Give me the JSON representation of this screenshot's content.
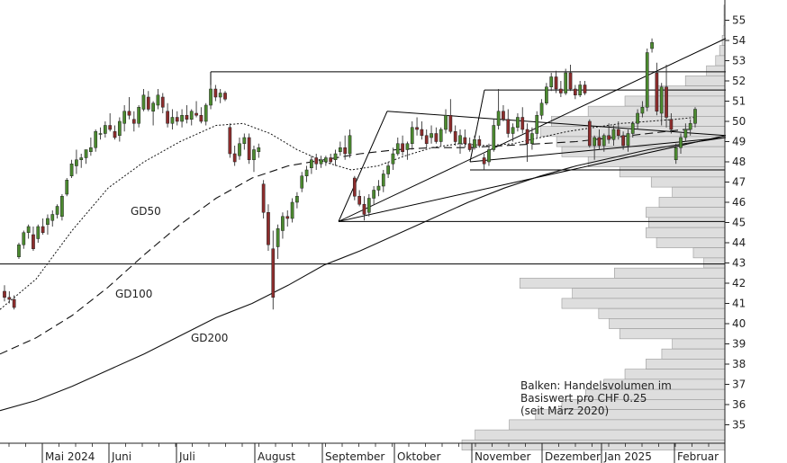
{
  "chart_data": {
    "type": "candlestick",
    "title": "",
    "xlabel": "",
    "ylabel": "",
    "ylim": [
      33.3,
      56
    ],
    "y_ticks": [
      35,
      36,
      37,
      38,
      39,
      40,
      41,
      42,
      43,
      44,
      45,
      46,
      47,
      48,
      49,
      50,
      51,
      52,
      53,
      54,
      55
    ],
    "x_months": [
      "Mai 2024",
      "Juni",
      "Juli",
      "August",
      "September",
      "Oktober",
      "November",
      "Dezember",
      "Jan 2025",
      "Februar"
    ],
    "candles": [
      [
        41.6,
        41.9,
        41.1,
        41.3
      ],
      [
        41.3,
        41.6,
        41.0,
        41.2
      ],
      [
        41.2,
        41.4,
        40.7,
        40.8
      ],
      [
        43.3,
        44.0,
        43.2,
        43.9
      ],
      [
        43.9,
        44.6,
        43.7,
        44.5
      ],
      [
        44.5,
        44.9,
        44.2,
        44.8
      ],
      [
        44.4,
        44.8,
        43.6,
        43.7
      ],
      [
        44.2,
        44.9,
        44.0,
        44.8
      ],
      [
        44.8,
        45.2,
        44.4,
        44.5
      ],
      [
        44.9,
        45.4,
        44.4,
        45.2
      ],
      [
        45.1,
        45.6,
        44.8,
        45.4
      ],
      [
        45.4,
        45.9,
        45.2,
        45.8
      ],
      [
        45.3,
        46.4,
        45.1,
        46.3
      ],
      [
        46.4,
        47.2,
        46.3,
        47.1
      ],
      [
        47.3,
        48.1,
        47.2,
        47.9
      ],
      [
        47.8,
        48.6,
        47.4,
        48.1
      ],
      [
        48.1,
        48.4,
        47.7,
        48.2
      ],
      [
        48.2,
        48.6,
        47.9,
        48.6
      ],
      [
        48.5,
        49.2,
        48.3,
        48.7
      ],
      [
        48.7,
        49.6,
        48.5,
        49.5
      ],
      [
        49.4,
        49.7,
        49.1,
        49.4
      ],
      [
        49.4,
        50.0,
        49.2,
        49.8
      ],
      [
        49.8,
        50.4,
        49.5,
        49.6
      ],
      [
        49.5,
        49.8,
        49.1,
        49.2
      ],
      [
        49.3,
        50.2,
        49.0,
        50.0
      ],
      [
        49.9,
        50.8,
        49.5,
        50.5
      ],
      [
        50.5,
        51.2,
        50.1,
        50.3
      ],
      [
        50.1,
        50.5,
        49.5,
        49.9
      ],
      [
        49.9,
        50.8,
        49.7,
        50.7
      ],
      [
        50.6,
        51.6,
        50.5,
        51.3
      ],
      [
        51.2,
        51.5,
        50.5,
        50.6
      ],
      [
        50.5,
        51.0,
        49.8,
        50.9
      ],
      [
        50.8,
        51.6,
        50.6,
        51.3
      ],
      [
        51.2,
        51.4,
        50.4,
        50.7
      ],
      [
        50.5,
        50.9,
        49.7,
        49.9
      ],
      [
        49.9,
        50.6,
        49.6,
        50.2
      ],
      [
        50.2,
        50.5,
        49.8,
        50.0
      ],
      [
        50.0,
        50.6,
        49.7,
        50.3
      ],
      [
        50.3,
        50.8,
        49.9,
        50.1
      ],
      [
        50.1,
        50.6,
        49.8,
        50.5
      ],
      [
        50.4,
        51.0,
        50.2,
        50.3
      ],
      [
        50.3,
        50.7,
        49.9,
        50.0
      ],
      [
        50.0,
        50.9,
        49.8,
        50.8
      ],
      [
        50.8,
        51.8,
        50.6,
        51.6
      ],
      [
        51.6,
        51.8,
        51.0,
        51.2
      ],
      [
        51.2,
        51.6,
        50.9,
        51.4
      ],
      [
        51.4,
        51.5,
        51.0,
        51.1
      ],
      [
        49.7,
        49.9,
        48.2,
        48.4
      ],
      [
        48.4,
        48.8,
        47.8,
        48.0
      ],
      [
        48.3,
        49.2,
        48.1,
        48.9
      ],
      [
        48.9,
        49.4,
        48.6,
        49.2
      ],
      [
        49.2,
        49.4,
        47.9,
        48.1
      ],
      [
        48.1,
        48.8,
        47.5,
        48.6
      ],
      [
        48.5,
        48.9,
        48.2,
        48.7
      ],
      [
        46.9,
        47.1,
        45.2,
        45.5
      ],
      [
        45.5,
        45.9,
        43.6,
        43.9
      ],
      [
        43.7,
        44.6,
        40.7,
        41.3
      ],
      [
        43.8,
        44.9,
        43.2,
        44.7
      ],
      [
        44.6,
        45.5,
        44.2,
        45.3
      ],
      [
        45.3,
        45.6,
        44.8,
        45.2
      ],
      [
        45.2,
        46.2,
        45.0,
        46.0
      ],
      [
        46.0,
        46.5,
        45.7,
        46.3
      ],
      [
        46.7,
        47.5,
        46.5,
        47.3
      ],
      [
        47.3,
        47.8,
        47.0,
        47.6
      ],
      [
        47.7,
        48.3,
        47.4,
        48.1
      ],
      [
        48.2,
        48.4,
        47.6,
        47.9
      ],
      [
        47.9,
        48.3,
        47.7,
        48.1
      ],
      [
        48.0,
        48.3,
        47.8,
        48.2
      ],
      [
        48.2,
        48.4,
        47.9,
        48.0
      ],
      [
        48.1,
        48.6,
        47.8,
        48.4
      ],
      [
        48.5,
        49.0,
        48.3,
        48.7
      ],
      [
        48.7,
        49.3,
        48.1,
        48.4
      ],
      [
        48.4,
        49.6,
        48.2,
        49.3
      ],
      [
        47.2,
        47.3,
        46.1,
        46.3
      ],
      [
        46.3,
        46.6,
        45.8,
        45.9
      ],
      [
        45.9,
        46.3,
        45.1,
        45.4
      ],
      [
        45.5,
        46.4,
        45.3,
        46.2
      ],
      [
        46.2,
        46.8,
        45.9,
        46.6
      ],
      [
        46.6,
        47.1,
        46.3,
        46.8
      ],
      [
        46.8,
        47.6,
        46.5,
        47.4
      ],
      [
        47.4,
        48.0,
        47.2,
        47.8
      ],
      [
        47.9,
        48.7,
        47.6,
        48.4
      ],
      [
        48.4,
        49.2,
        48.3,
        48.9
      ],
      [
        48.9,
        49.3,
        48.3,
        48.5
      ],
      [
        48.6,
        49.0,
        48.1,
        48.9
      ],
      [
        48.9,
        50.0,
        48.6,
        49.7
      ],
      [
        49.7,
        50.2,
        49.3,
        49.6
      ],
      [
        49.6,
        50.0,
        49.1,
        49.3
      ],
      [
        49.3,
        49.6,
        48.7,
        48.9
      ],
      [
        49.2,
        49.8,
        48.9,
        49.4
      ],
      [
        49.4,
        49.7,
        48.9,
        49.0
      ],
      [
        49.0,
        49.7,
        48.8,
        49.6
      ],
      [
        49.6,
        50.6,
        49.4,
        50.3
      ],
      [
        50.3,
        51.1,
        49.4,
        49.5
      ],
      [
        49.5,
        49.8,
        48.8,
        49.0
      ],
      [
        48.9,
        49.6,
        48.4,
        49.3
      ],
      [
        49.2,
        49.6,
        48.7,
        48.9
      ],
      [
        48.9,
        49.2,
        48.5,
        48.6
      ],
      [
        48.7,
        49.3,
        48.6,
        49.1
      ],
      [
        49.1,
        49.3,
        48.7,
        48.8
      ],
      [
        48.2,
        48.4,
        47.6,
        47.9
      ],
      [
        48.0,
        48.9,
        47.8,
        48.6
      ],
      [
        48.6,
        50.1,
        48.5,
        49.8
      ],
      [
        49.8,
        51.6,
        49.6,
        50.5
      ],
      [
        50.5,
        50.8,
        50.0,
        50.1
      ],
      [
        50.1,
        50.6,
        49.2,
        49.4
      ],
      [
        49.4,
        49.9,
        49.0,
        49.7
      ],
      [
        49.7,
        50.4,
        49.5,
        50.2
      ],
      [
        50.2,
        50.7,
        49.4,
        49.6
      ],
      [
        49.6,
        49.9,
        48.0,
        48.9
      ],
      [
        48.9,
        49.7,
        48.6,
        49.4
      ],
      [
        49.4,
        50.5,
        49.2,
        50.3
      ],
      [
        50.3,
        51.1,
        50.1,
        50.9
      ],
      [
        50.9,
        51.9,
        50.8,
        51.7
      ],
      [
        51.7,
        52.4,
        51.5,
        52.2
      ],
      [
        52.2,
        52.5,
        51.4,
        51.6
      ],
      [
        51.6,
        52.0,
        51.2,
        51.4
      ],
      [
        51.4,
        52.6,
        51.3,
        52.4
      ],
      [
        52.4,
        52.8,
        51.5,
        51.6
      ],
      [
        51.6,
        51.8,
        51.1,
        51.3
      ],
      [
        51.3,
        52.0,
        51.2,
        51.8
      ],
      [
        51.8,
        52.0,
        51.3,
        51.4
      ],
      [
        50.0,
        50.1,
        48.7,
        48.8
      ],
      [
        48.8,
        49.3,
        48.1,
        49.2
      ],
      [
        49.2,
        49.6,
        48.6,
        48.8
      ],
      [
        48.8,
        49.4,
        48.5,
        49.3
      ],
      [
        49.3,
        49.9,
        48.9,
        49.1
      ],
      [
        49.1,
        49.8,
        48.8,
        49.6
      ],
      [
        49.6,
        50.0,
        49.1,
        49.3
      ],
      [
        49.3,
        49.5,
        48.6,
        48.8
      ],
      [
        48.8,
        49.6,
        48.5,
        49.4
      ],
      [
        49.4,
        50.0,
        49.2,
        49.9
      ],
      [
        49.9,
        50.6,
        49.6,
        50.4
      ],
      [
        50.4,
        51.0,
        50.2,
        50.7
      ],
      [
        50.7,
        53.6,
        50.5,
        53.4
      ],
      [
        53.6,
        54.1,
        53.4,
        53.9
      ],
      [
        52.4,
        52.9,
        50.3,
        50.5
      ],
      [
        50.4,
        51.9,
        49.8,
        51.7
      ],
      [
        51.7,
        52.8,
        49.7,
        50.2
      ],
      [
        50.1,
        50.4,
        49.4,
        49.6
      ],
      [
        48.1,
        48.9,
        47.9,
        48.7
      ],
      [
        48.7,
        49.4,
        48.4,
        49.2
      ],
      [
        49.2,
        49.9,
        49.0,
        49.6
      ],
      [
        49.6,
        50.1,
        49.3,
        49.9
      ],
      [
        49.9,
        50.7,
        49.7,
        50.6
      ]
    ],
    "volume_profile": [
      [
        55.5,
        0.001
      ],
      [
        55,
        0.002
      ],
      [
        54.5,
        0.004
      ],
      [
        54,
        0.01
      ],
      [
        53.5,
        0.02
      ],
      [
        53,
        0.035
      ],
      [
        52.5,
        0.07
      ],
      [
        52,
        0.15
      ],
      [
        51.5,
        0.26
      ],
      [
        51,
        0.38
      ],
      [
        50.5,
        0.52
      ],
      [
        50,
        0.66
      ],
      [
        49.5,
        0.7
      ],
      [
        49,
        0.64
      ],
      [
        48.5,
        0.62
      ],
      [
        48,
        0.52
      ],
      [
        47.5,
        0.4
      ],
      [
        47,
        0.28
      ],
      [
        46.5,
        0.2
      ],
      [
        46,
        0.25
      ],
      [
        45.5,
        0.3
      ],
      [
        45,
        0.29
      ],
      [
        44.5,
        0.3
      ],
      [
        44,
        0.26
      ],
      [
        43.5,
        0.12
      ],
      [
        43,
        0.08
      ],
      [
        42.5,
        0.42
      ],
      [
        42,
        0.78
      ],
      [
        41.5,
        0.58
      ],
      [
        41,
        0.62
      ],
      [
        40.5,
        0.48
      ],
      [
        40,
        0.44
      ],
      [
        39.5,
        0.4
      ],
      [
        39,
        0.2
      ],
      [
        38.5,
        0.24
      ],
      [
        38,
        0.3
      ],
      [
        37.5,
        0.38
      ],
      [
        37,
        0.46
      ],
      [
        36.5,
        0.53
      ],
      [
        36,
        0.62
      ],
      [
        35.5,
        0.72
      ],
      [
        35,
        0.82
      ],
      [
        34.5,
        0.95
      ],
      [
        34,
        1.0
      ]
    ],
    "annotations": {
      "gd50_label": "GD50",
      "gd100_label": "GD100",
      "gd200_label": "GD200",
      "note_lines": [
        "Balken: Handelsvolumen im",
        "Basiswert pro CHF 0.25",
        "(seit März 2020)"
      ]
    },
    "grid": false
  }
}
